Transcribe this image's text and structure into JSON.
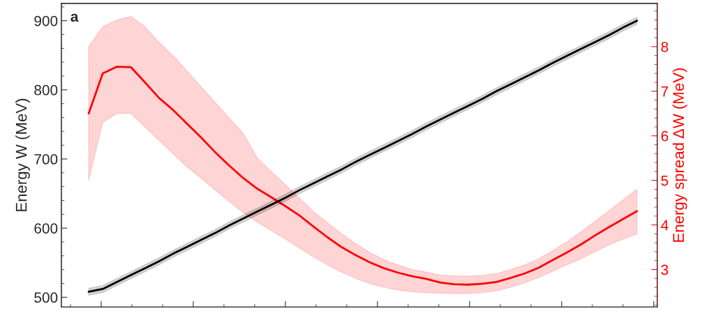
{
  "chart_data": {
    "type": "line",
    "annotations": [
      "a"
    ],
    "ylabel": "Energy W (MeV)",
    "y2label": "Energy spread ΔW (MeV)",
    "categories": [
      null,
      null,
      null,
      null,
      null,
      null,
      null,
      null,
      null,
      null,
      null,
      null,
      null,
      null,
      null,
      null,
      null,
      null,
      null,
      null,
      null,
      null,
      null,
      null,
      null,
      null,
      null,
      null,
      null,
      null,
      null,
      null,
      null,
      null,
      null,
      null,
      null,
      null,
      null,
      null
    ],
    "ylim": [
      486,
      925
    ],
    "yticks": [
      500,
      600,
      700,
      800,
      900
    ],
    "y2lim": [
      2.16,
      8.97
    ],
    "y2ticks": [
      3,
      4,
      5,
      6,
      7,
      8
    ],
    "grid": false,
    "marker": "none",
    "line_style": "solid",
    "series": [
      {
        "color": "#000000",
        "values": [
          508,
          512,
          522,
          532,
          542,
          552,
          563,
          573,
          583,
          593,
          604,
          614,
          624,
          634,
          644,
          655,
          665,
          675,
          685,
          696,
          706,
          716,
          726,
          736,
          747,
          757,
          767,
          777,
          787,
          798,
          808,
          818,
          828,
          839,
          849,
          859,
          869,
          879,
          890,
          900
        ],
        "lower": [
          503,
          507,
          517,
          527,
          537,
          547,
          558,
          568,
          578,
          588,
          599,
          609,
          619,
          629,
          639,
          650,
          660,
          670,
          680,
          691,
          701,
          711,
          721,
          731,
          742,
          752,
          762,
          772,
          782,
          793,
          803,
          813,
          823,
          834,
          844,
          854,
          864,
          874,
          885,
          895
        ],
        "upper": [
          513,
          517,
          527,
          537,
          547,
          557,
          568,
          578,
          588,
          598,
          609,
          619,
          629,
          639,
          649,
          660,
          670,
          680,
          690,
          701,
          711,
          721,
          731,
          741,
          752,
          762,
          772,
          782,
          792,
          803,
          813,
          823,
          833,
          844,
          854,
          864,
          874,
          884,
          895,
          905
        ]
      },
      {
        "color": "#ff0000",
        "axis": "y2",
        "values": [
          6.5,
          7.4,
          7.55,
          7.54,
          7.2,
          6.85,
          6.58,
          6.27,
          5.96,
          5.63,
          5.33,
          5.05,
          4.81,
          4.62,
          4.42,
          4.21,
          3.96,
          3.72,
          3.5,
          3.32,
          3.16,
          3.03,
          2.93,
          2.85,
          2.79,
          2.71,
          2.67,
          2.66,
          2.68,
          2.72,
          2.81,
          2.91,
          3.04,
          3.21,
          3.38,
          3.56,
          3.76,
          3.95,
          4.13,
          4.31
        ],
        "lower": [
          5.0,
          6.3,
          6.5,
          6.5,
          6.2,
          5.9,
          5.6,
          5.3,
          5.05,
          4.78,
          4.52,
          4.28,
          4.06,
          3.87,
          3.68,
          3.48,
          3.28,
          3.1,
          2.94,
          2.8,
          2.68,
          2.6,
          2.54,
          2.5,
          2.48,
          2.47,
          2.46,
          2.46,
          2.48,
          2.52,
          2.6,
          2.7,
          2.82,
          2.96,
          3.1,
          3.24,
          3.4,
          3.55,
          3.68,
          3.8
        ],
        "upper": [
          8.0,
          8.45,
          8.6,
          8.68,
          8.45,
          8.1,
          7.8,
          7.45,
          7.1,
          6.75,
          6.4,
          6.05,
          5.5,
          5.2,
          4.9,
          4.6,
          4.3,
          4.05,
          3.8,
          3.58,
          3.38,
          3.22,
          3.1,
          3.0,
          2.94,
          2.88,
          2.86,
          2.85,
          2.87,
          2.91,
          3.0,
          3.1,
          3.24,
          3.42,
          3.62,
          3.84,
          4.08,
          4.32,
          4.56,
          4.8
        ]
      }
    ]
  }
}
